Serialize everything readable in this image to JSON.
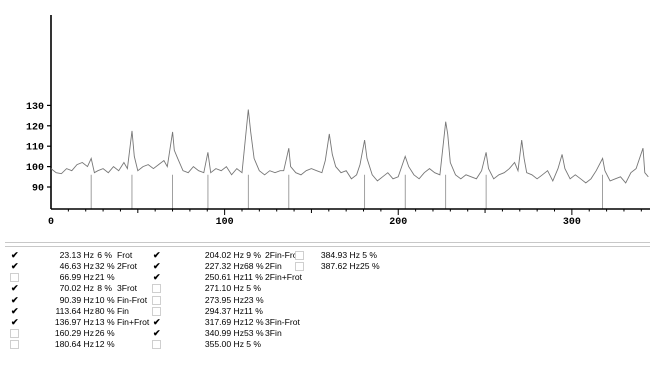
{
  "chart_data": {
    "type": "line",
    "xlabel": "",
    "ylabel": "",
    "x_ticks": [
      0,
      100,
      200,
      300
    ],
    "y_ticks": [
      90,
      100,
      110,
      120,
      130
    ],
    "xlim": [
      0,
      345
    ],
    "ylim": [
      84,
      131
    ],
    "series": [
      {
        "points": [
          [
            0,
            99
          ],
          [
            3,
            97
          ],
          [
            6,
            96.5
          ],
          [
            9,
            99
          ],
          [
            12,
            98
          ],
          [
            15,
            101
          ],
          [
            18,
            102
          ],
          [
            21,
            100
          ],
          [
            23.13,
            104
          ],
          [
            25,
            97
          ],
          [
            27,
            98
          ],
          [
            30,
            99
          ],
          [
            33,
            97
          ],
          [
            36,
            100
          ],
          [
            39,
            98
          ],
          [
            42,
            102
          ],
          [
            44,
            99
          ],
          [
            46.63,
            117.5
          ],
          [
            48,
            105
          ],
          [
            50,
            98
          ],
          [
            53,
            100
          ],
          [
            56,
            101
          ],
          [
            59,
            99
          ],
          [
            62,
            101
          ],
          [
            65,
            103
          ],
          [
            67,
            100
          ],
          [
            70.02,
            117
          ],
          [
            71,
            108
          ],
          [
            73,
            104
          ],
          [
            76,
            98
          ],
          [
            79,
            97
          ],
          [
            82,
            100
          ],
          [
            85,
            98
          ],
          [
            88,
            97
          ],
          [
            90.39,
            107
          ],
          [
            92,
            97
          ],
          [
            95,
            99
          ],
          [
            98,
            98
          ],
          [
            101,
            100
          ],
          [
            104,
            96
          ],
          [
            107,
            99
          ],
          [
            110,
            97
          ],
          [
            113.64,
            128
          ],
          [
            115,
            117
          ],
          [
            117,
            104
          ],
          [
            120,
            98
          ],
          [
            123,
            96
          ],
          [
            126,
            98
          ],
          [
            129,
            97
          ],
          [
            132,
            98
          ],
          [
            134,
            98
          ],
          [
            136.97,
            109
          ],
          [
            138,
            100
          ],
          [
            141,
            97
          ],
          [
            144,
            96
          ],
          [
            147,
            98
          ],
          [
            150,
            99
          ],
          [
            153,
            98
          ],
          [
            156,
            97
          ],
          [
            158,
            103
          ],
          [
            160.29,
            116
          ],
          [
            162,
            106
          ],
          [
            164,
            100
          ],
          [
            167,
            97
          ],
          [
            170,
            98
          ],
          [
            173,
            94
          ],
          [
            176,
            96
          ],
          [
            178,
            101
          ],
          [
            180.64,
            113
          ],
          [
            182,
            104
          ],
          [
            185,
            96
          ],
          [
            188,
            93
          ],
          [
            191,
            95
          ],
          [
            194,
            97
          ],
          [
            197,
            94
          ],
          [
            200,
            95
          ],
          [
            202,
            100
          ],
          [
            204.02,
            105
          ],
          [
            206,
            100
          ],
          [
            209,
            96
          ],
          [
            212,
            94
          ],
          [
            215,
            97
          ],
          [
            218,
            99
          ],
          [
            221,
            97
          ],
          [
            224,
            96
          ],
          [
            227.32,
            122
          ],
          [
            228.5,
            116
          ],
          [
            230,
            102
          ],
          [
            233,
            96
          ],
          [
            236,
            94
          ],
          [
            239,
            96
          ],
          [
            242,
            95
          ],
          [
            245,
            94
          ],
          [
            248,
            98
          ],
          [
            250.61,
            107
          ],
          [
            252,
            99
          ],
          [
            255,
            94
          ],
          [
            258,
            96
          ],
          [
            261,
            97
          ],
          [
            264,
            99
          ],
          [
            267,
            102
          ],
          [
            269,
            98
          ],
          [
            271.1,
            113
          ],
          [
            272.5,
            104
          ],
          [
            274,
            97
          ],
          [
            277,
            96
          ],
          [
            280,
            94
          ],
          [
            283,
            96
          ],
          [
            286,
            98
          ],
          [
            289,
            93
          ],
          [
            292,
            99
          ],
          [
            294.37,
            106
          ],
          [
            296,
            99
          ],
          [
            299,
            94
          ],
          [
            302,
            96
          ],
          [
            305,
            94
          ],
          [
            308,
            92
          ],
          [
            311,
            94
          ],
          [
            314,
            98
          ],
          [
            317.69,
            104
          ],
          [
            319,
            98
          ],
          [
            322,
            93
          ],
          [
            325,
            94
          ],
          [
            328,
            95
          ],
          [
            331,
            92
          ],
          [
            334,
            97
          ],
          [
            337,
            99
          ],
          [
            340.99,
            109
          ],
          [
            342,
            97
          ],
          [
            344,
            95
          ]
        ]
      }
    ],
    "markers_x": [
      23.13,
      46.63,
      70.02,
      90.39,
      113.64,
      136.97,
      180.64,
      204.02,
      227.32,
      250.61,
      317.69
    ],
    "grid": false
  },
  "peaks": {
    "columns": [
      [
        {
          "freq": "23.13 Hz",
          "pct": "6 %",
          "label": "Frot",
          "checked": true
        },
        {
          "freq": "46.63 Hz",
          "pct": "32 %",
          "label": "2Frot",
          "checked": true
        },
        {
          "freq": "66.99 Hz",
          "pct": "21 %",
          "label": "",
          "checked": false
        },
        {
          "freq": "70.02 Hz",
          "pct": "8 %",
          "label": "3Frot",
          "checked": true
        },
        {
          "freq": "90.39 Hz",
          "pct": "10 %",
          "label": "Fin-Frot",
          "checked": true
        },
        {
          "freq": "113.64 Hz",
          "pct": "80 %",
          "label": "Fin",
          "checked": true
        },
        {
          "freq": "136.97 Hz",
          "pct": "13 %",
          "label": "Fin+Frot",
          "checked": true
        },
        {
          "freq": "160.29 Hz",
          "pct": "26 %",
          "label": "",
          "checked": false
        },
        {
          "freq": "180.64 Hz",
          "pct": "12 %",
          "label": "",
          "checked": false
        }
      ],
      [
        {
          "freq": "204.02 Hz",
          "pct": "9 %",
          "label": "2Fin-Frot",
          "checked": true
        },
        {
          "freq": "227.32 Hz",
          "pct": "68 %",
          "label": "2Fin",
          "checked": true
        },
        {
          "freq": "250.61 Hz",
          "pct": "11 %",
          "label": "2Fin+Frot",
          "checked": true
        },
        {
          "freq": "271.10 Hz",
          "pct": "5 %",
          "label": "",
          "checked": false
        },
        {
          "freq": "273.95 Hz",
          "pct": "23 %",
          "label": "",
          "checked": false
        },
        {
          "freq": "294.37 Hz",
          "pct": "11 %",
          "label": "",
          "checked": false
        },
        {
          "freq": "317.69 Hz",
          "pct": "12 %",
          "label": "3Fin-Frot",
          "checked": true
        },
        {
          "freq": "340.99 Hz",
          "pct": "53 %",
          "label": "3Fin",
          "checked": true
        },
        {
          "freq": "355.00 Hz",
          "pct": "5 %",
          "label": "",
          "checked": false
        }
      ],
      [
        {
          "freq": "384.93 Hz",
          "pct": "5 %",
          "label": "",
          "checked": false
        },
        {
          "freq": "387.62 Hz",
          "pct": "25 %",
          "label": "",
          "checked": false
        }
      ]
    ]
  },
  "check_mark": "✔"
}
